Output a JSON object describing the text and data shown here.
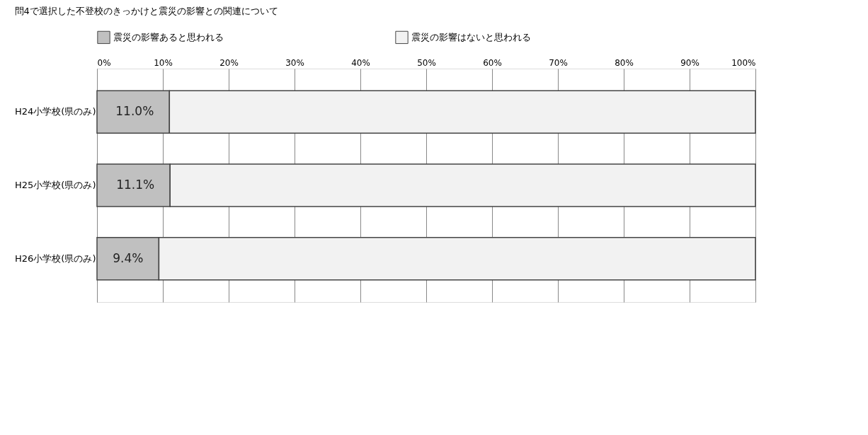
{
  "chart_data": {
    "type": "bar",
    "orientation": "horizontal",
    "stacked": true,
    "title": "問4で選択した不登校のきっかけと震災の影響との関連について",
    "categories": [
      "H24小学校(県のみ)",
      "H25小学校(県のみ)",
      "H26小学校(県のみ)"
    ],
    "series": [
      {
        "name": "震災の影響あると思われる",
        "color": "#c0c0c0",
        "values": [
          11.0,
          11.1,
          9.4
        ],
        "value_labels": [
          "11.0%",
          "11.1%",
          "9.4%"
        ]
      },
      {
        "name": "震災の影響はないと思われる",
        "color": "#f2f2f2",
        "values": [
          89.0,
          88.9,
          90.6
        ]
      }
    ],
    "xlim": [
      0,
      100
    ],
    "xticks": [
      {
        "value": 0,
        "label": "0%"
      },
      {
        "value": 10,
        "label": "10%"
      },
      {
        "value": 20,
        "label": "20%"
      },
      {
        "value": 30,
        "label": "30%"
      },
      {
        "value": 40,
        "label": "40%"
      },
      {
        "value": 50,
        "label": "50%"
      },
      {
        "value": 60,
        "label": "60%"
      },
      {
        "value": 70,
        "label": "70%"
      },
      {
        "value": 80,
        "label": "80%"
      },
      {
        "value": 90,
        "label": "90%"
      },
      {
        "value": 100,
        "label": "100%"
      }
    ],
    "grid": "x",
    "legend": "top"
  }
}
